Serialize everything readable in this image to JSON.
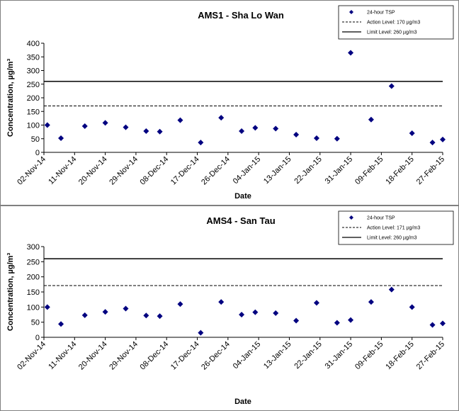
{
  "chart_data": [
    {
      "type": "scatter",
      "title": "AMS1 - Sha Lo Wan",
      "x_label": "Date",
      "y_label": "Concentration, µg/m³",
      "series": [
        {
          "name": "24-hour TSP",
          "color": "#000080",
          "x": [
            "2014-11-03",
            "2014-11-07",
            "2014-11-14",
            "2014-11-20",
            "2014-11-26",
            "2014-12-02",
            "2014-12-06",
            "2014-12-12",
            "2014-12-18",
            "2014-12-24",
            "2014-12-30",
            "2015-01-03",
            "2015-01-09",
            "2015-01-15",
            "2015-01-21",
            "2015-01-27",
            "2015-01-31",
            "2015-02-06",
            "2015-02-12",
            "2015-02-18",
            "2015-02-24",
            "2015-02-27"
          ],
          "values": [
            100,
            52,
            96,
            108,
            92,
            78,
            76,
            118,
            36,
            127,
            78,
            90,
            87,
            65,
            52,
            50,
            365,
            120,
            243,
            70,
            36,
            47
          ]
        }
      ],
      "lines": [
        {
          "name": "Action Level: 170 µg/m3",
          "value": 170,
          "style": "dashed"
        },
        {
          "name": "Limit Level: 260 µg/m3",
          "value": 260,
          "style": "solid"
        }
      ],
      "xlim": [
        "2014-11-02",
        "2015-02-27"
      ],
      "xticks": [
        {
          "value": "2014-11-02",
          "label": "02-Nov-14"
        },
        {
          "value": "2014-11-11",
          "label": "11-Nov-14"
        },
        {
          "value": "2014-11-20",
          "label": "20-Nov-14"
        },
        {
          "value": "2014-11-29",
          "label": "29-Nov-14"
        },
        {
          "value": "2014-12-08",
          "label": "08-Dec-14"
        },
        {
          "value": "2014-12-17",
          "label": "17-Dec-14"
        },
        {
          "value": "2014-12-26",
          "label": "26-Dec-14"
        },
        {
          "value": "2015-01-04",
          "label": "04-Jan-15"
        },
        {
          "value": "2015-01-13",
          "label": "13-Jan-15"
        },
        {
          "value": "2015-01-22",
          "label": "22-Jan-15"
        },
        {
          "value": "2015-01-31",
          "label": "31-Jan-15"
        },
        {
          "value": "2015-02-09",
          "label": "09-Feb-15"
        },
        {
          "value": "2015-02-18",
          "label": "18-Feb-15"
        },
        {
          "value": "2015-02-27",
          "label": "27-Feb-15"
        }
      ],
      "ylim": [
        0,
        400
      ],
      "yticks": [
        0,
        50,
        100,
        150,
        200,
        250,
        300,
        350,
        400
      ]
    },
    {
      "type": "scatter",
      "title": "AMS4 - San Tau",
      "x_label": "Date",
      "y_label": "Concentration, µg/m³",
      "series": [
        {
          "name": "24-hour TSP",
          "color": "#000080",
          "x": [
            "2014-11-03",
            "2014-11-07",
            "2014-11-14",
            "2014-11-20",
            "2014-11-26",
            "2014-12-02",
            "2014-12-06",
            "2014-12-12",
            "2014-12-18",
            "2014-12-24",
            "2014-12-30",
            "2015-01-03",
            "2015-01-09",
            "2015-01-15",
            "2015-01-21",
            "2015-01-27",
            "2015-01-31",
            "2015-02-06",
            "2015-02-12",
            "2015-02-18",
            "2015-02-24",
            "2015-02-27"
          ],
          "values": [
            100,
            44,
            73,
            84,
            95,
            72,
            70,
            110,
            15,
            117,
            75,
            83,
            80,
            55,
            114,
            48,
            57,
            117,
            158,
            100,
            41,
            46
          ]
        }
      ],
      "lines": [
        {
          "name": "Action Level: 171 µg/m3",
          "value": 171,
          "style": "dashed"
        },
        {
          "name": "Limit Level: 260 µg/m3",
          "value": 260,
          "style": "solid"
        }
      ],
      "xlim": [
        "2014-11-02",
        "2015-02-27"
      ],
      "xticks": [
        {
          "value": "2014-11-02",
          "label": "02-Nov-14"
        },
        {
          "value": "2014-11-11",
          "label": "11-Nov-14"
        },
        {
          "value": "2014-11-20",
          "label": "20-Nov-14"
        },
        {
          "value": "2014-11-29",
          "label": "29-Nov-14"
        },
        {
          "value": "2014-12-08",
          "label": "08-Dec-14"
        },
        {
          "value": "2014-12-17",
          "label": "17-Dec-14"
        },
        {
          "value": "2014-12-26",
          "label": "26-Dec-14"
        },
        {
          "value": "2015-01-04",
          "label": "04-Jan-15"
        },
        {
          "value": "2015-01-13",
          "label": "13-Jan-15"
        },
        {
          "value": "2015-01-22",
          "label": "22-Jan-15"
        },
        {
          "value": "2015-01-31",
          "label": "31-Jan-15"
        },
        {
          "value": "2015-02-09",
          "label": "09-Feb-15"
        },
        {
          "value": "2015-02-18",
          "label": "18-Feb-15"
        },
        {
          "value": "2015-02-27",
          "label": "27-Feb-15"
        }
      ],
      "ylim": [
        0,
        300
      ],
      "yticks": [
        0,
        50,
        100,
        150,
        200,
        250,
        300
      ]
    }
  ]
}
